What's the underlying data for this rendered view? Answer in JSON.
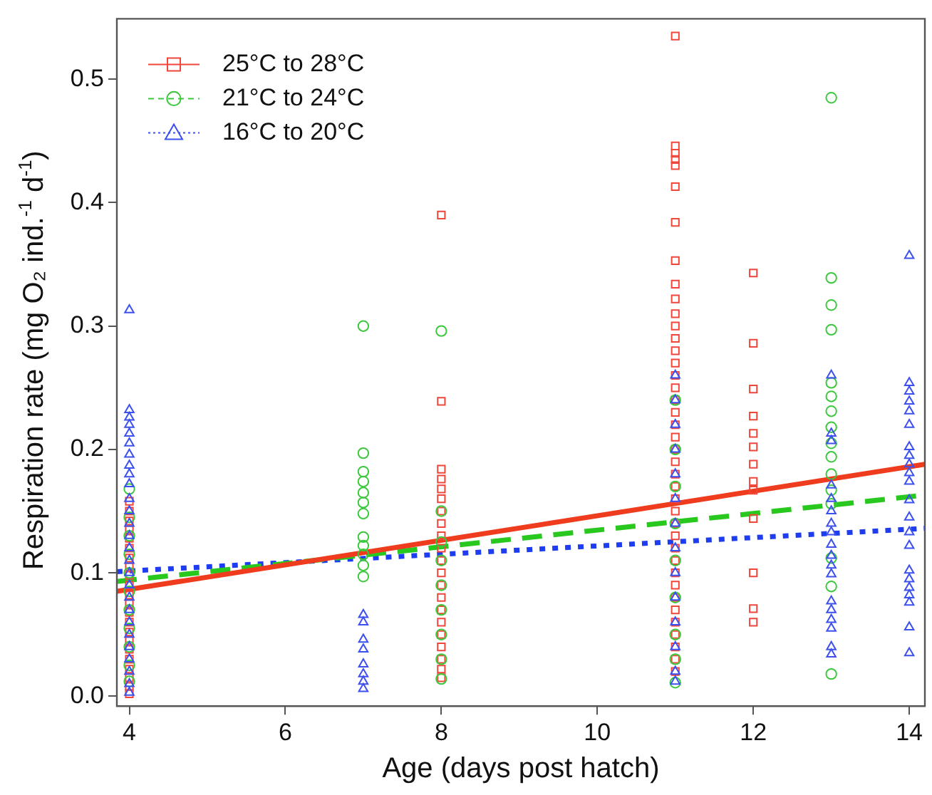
{
  "chart_data": {
    "type": "scatter",
    "xlabel": "Age (days post hatch)",
    "ylabel": "Respiration rate (mg O₂ ind.$^{-1}$ d$^{-1}$)",
    "xlim": [
      3.84,
      14.2
    ],
    "xticks": [
      4,
      6,
      8,
      10,
      12,
      14
    ],
    "ylim": [
      -0.008,
      0.549
    ],
    "yticks": [
      {
        "value": 0,
        "label": "0.0"
      },
      0.1,
      0.2,
      0.3,
      0.4,
      0.5
    ],
    "grid": false,
    "legend": "top left",
    "series": [
      {
        "name": "25°C to 28°C",
        "color": "#f0463c",
        "marker": "square",
        "x": [
          4,
          4,
          4,
          4,
          4,
          4,
          4,
          4,
          4,
          4,
          4,
          4,
          4,
          4,
          4,
          4,
          4,
          4,
          4,
          4,
          4,
          4,
          8,
          8,
          8,
          8,
          8,
          8,
          8,
          8,
          8,
          8,
          8,
          8,
          8,
          8,
          8,
          8,
          8,
          8,
          8,
          8,
          8,
          11,
          11,
          11,
          11,
          11,
          11,
          11,
          11,
          11,
          11,
          11,
          11,
          11,
          11,
          11,
          11,
          11,
          11,
          11,
          11,
          11,
          11,
          11,
          11,
          11,
          11,
          11,
          11,
          11,
          11,
          11,
          11,
          11,
          11,
          11,
          11,
          11,
          11,
          11,
          11,
          12,
          12,
          12,
          12,
          12,
          12,
          12,
          12,
          12,
          12,
          12,
          12,
          12
        ],
        "values": [
          0.002,
          0.008,
          0.015,
          0.022,
          0.03,
          0.038,
          0.045,
          0.052,
          0.06,
          0.068,
          0.075,
          0.082,
          0.09,
          0.098,
          0.105,
          0.112,
          0.12,
          0.128,
          0.135,
          0.142,
          0.15,
          0.158,
          0.39,
          0.239,
          0.184,
          0.176,
          0.168,
          0.16,
          0.15,
          0.14,
          0.13,
          0.12,
          0.11,
          0.1,
          0.09,
          0.08,
          0.07,
          0.06,
          0.05,
          0.04,
          0.03,
          0.022,
          0.015,
          0.535,
          0.446,
          0.44,
          0.435,
          0.43,
          0.413,
          0.384,
          0.353,
          0.334,
          0.322,
          0.31,
          0.3,
          0.29,
          0.28,
          0.27,
          0.26,
          0.25,
          0.24,
          0.23,
          0.22,
          0.21,
          0.2,
          0.19,
          0.18,
          0.17,
          0.16,
          0.15,
          0.14,
          0.13,
          0.12,
          0.11,
          0.1,
          0.09,
          0.08,
          0.07,
          0.06,
          0.05,
          0.04,
          0.03,
          0.02,
          0.343,
          0.286,
          0.249,
          0.227,
          0.213,
          0.202,
          0.188,
          0.174,
          0.167,
          0.144,
          0.1,
          0.071,
          0.06
        ]
      },
      {
        "name": "21°C to 24°C",
        "color": "#3cc83c",
        "marker": "circle",
        "x": [
          4,
          4,
          4,
          4,
          4,
          4,
          4,
          4,
          4,
          4,
          4,
          7,
          7,
          7,
          7,
          7,
          7,
          7,
          7,
          7,
          7,
          7,
          7,
          8,
          8,
          8,
          8,
          8,
          8,
          8,
          8,
          8,
          11,
          11,
          11,
          11,
          11,
          11,
          11,
          11,
          11,
          13,
          13,
          13,
          13,
          13,
          13,
          13,
          13,
          13,
          13,
          13,
          13,
          13,
          13,
          13,
          13
        ],
        "values": [
          0.012,
          0.025,
          0.04,
          0.055,
          0.07,
          0.085,
          0.1,
          0.115,
          0.13,
          0.145,
          0.168,
          0.3,
          0.197,
          0.182,
          0.174,
          0.165,
          0.157,
          0.148,
          0.129,
          0.122,
          0.115,
          0.106,
          0.097,
          0.296,
          0.15,
          0.125,
          0.11,
          0.09,
          0.07,
          0.05,
          0.03,
          0.014,
          0.24,
          0.2,
          0.17,
          0.14,
          0.11,
          0.08,
          0.05,
          0.03,
          0.011,
          0.485,
          0.339,
          0.317,
          0.297,
          0.254,
          0.243,
          0.231,
          0.218,
          0.205,
          0.194,
          0.18,
          0.167,
          0.156,
          0.112,
          0.089,
          0.018
        ]
      },
      {
        "name": "16°C to 20°C",
        "color": "#3c50f0",
        "marker": "triangle",
        "x": [
          4,
          4,
          4,
          4,
          4,
          4,
          4,
          4,
          4,
          4,
          4,
          4,
          4,
          4,
          4,
          4,
          4,
          4,
          4,
          4,
          4,
          4,
          4,
          4,
          4,
          4,
          4,
          7,
          7,
          7,
          7,
          7,
          7,
          7,
          7,
          11,
          11,
          11,
          11,
          11,
          11,
          11,
          11,
          11,
          11,
          11,
          11,
          11,
          11,
          13,
          13,
          13,
          13,
          13,
          13,
          13,
          13,
          13,
          13,
          13,
          13,
          13,
          13,
          13,
          13,
          13,
          13,
          14,
          14,
          14,
          14,
          14,
          14,
          14,
          14,
          14,
          14,
          14,
          14,
          14,
          14,
          14,
          14,
          14,
          14,
          14,
          14,
          14,
          14
        ],
        "values": [
          0.313,
          0.232,
          0.226,
          0.22,
          0.213,
          0.205,
          0.196,
          0.187,
          0.18,
          0.172,
          0.16,
          0.15,
          0.14,
          0.13,
          0.12,
          0.11,
          0.1,
          0.09,
          0.08,
          0.07,
          0.06,
          0.05,
          0.04,
          0.03,
          0.02,
          0.01,
          0.003,
          0.066,
          0.06,
          0.046,
          0.038,
          0.026,
          0.018,
          0.012,
          0.006,
          0.26,
          0.24,
          0.22,
          0.2,
          0.18,
          0.16,
          0.14,
          0.12,
          0.1,
          0.08,
          0.06,
          0.04,
          0.02,
          0.012,
          0.26,
          0.213,
          0.207,
          0.171,
          0.16,
          0.15,
          0.14,
          0.133,
          0.123,
          0.114,
          0.106,
          0.099,
          0.077,
          0.07,
          0.062,
          0.055,
          0.04,
          0.034,
          0.357,
          0.254,
          0.247,
          0.239,
          0.231,
          0.22,
          0.202,
          0.195,
          0.188,
          0.181,
          0.174,
          0.159,
          0.145,
          0.133,
          0.122,
          0.102,
          0.095,
          0.088,
          0.082,
          0.076,
          0.056,
          0.035
        ]
      },
      {
        "type": "line",
        "color": "#f03c1e",
        "line_style": "solid",
        "x": [
          3.84,
          14.2
        ],
        "values": [
          0.085,
          0.188
        ]
      },
      {
        "type": "line",
        "color": "#28c81e",
        "line_style": "dashed",
        "x": [
          3.84,
          14.2
        ],
        "values": [
          0.093,
          0.163
        ]
      },
      {
        "type": "line",
        "color": "#1e3cf0",
        "line_style": "dotted",
        "x": [
          3.84,
          14.2
        ],
        "values": [
          0.101,
          0.136
        ]
      }
    ]
  }
}
